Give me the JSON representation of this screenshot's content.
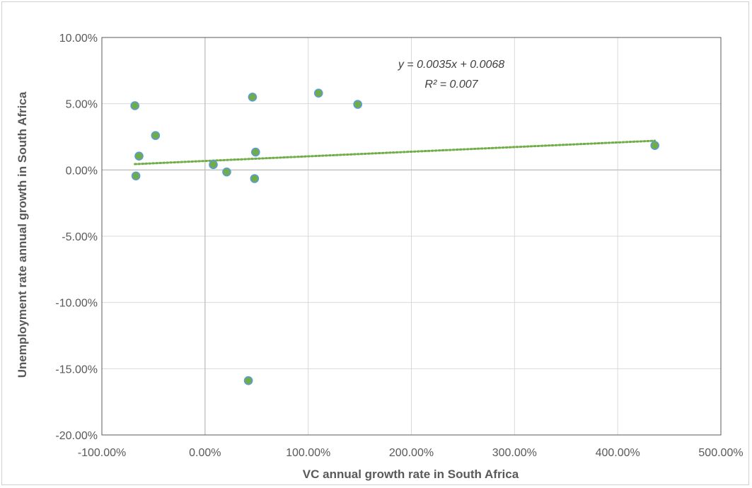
{
  "chart_data": {
    "type": "scatter",
    "xlabel": "VC annual growth rate in South Africa",
    "ylabel": "Unemployment rate annual growth in South Africa",
    "xlim": [
      -100,
      500
    ],
    "ylim": [
      -20,
      10
    ],
    "x_ticks": [
      -100,
      0,
      100,
      200,
      300,
      400,
      500
    ],
    "y_ticks": [
      -20,
      -15,
      -10,
      -5,
      0,
      5,
      10
    ],
    "x_tick_labels": [
      "-100.00%",
      "0.00%",
      "100.00%",
      "200.00%",
      "300.00%",
      "400.00%",
      "500.00%"
    ],
    "y_tick_labels": [
      "-20.00%",
      "-15.00%",
      "-10.00%",
      "-5.00%",
      "0.00%",
      "5.00%",
      "10.00%"
    ],
    "grid": true,
    "points": [
      {
        "x": -68,
        "y": 4.85
      },
      {
        "x": -48,
        "y": 2.6
      },
      {
        "x": -64,
        "y": 1.05
      },
      {
        "x": -67,
        "y": -0.45
      },
      {
        "x": 8,
        "y": 0.4
      },
      {
        "x": 21,
        "y": -0.15
      },
      {
        "x": 46,
        "y": 5.5
      },
      {
        "x": 49,
        "y": 1.35
      },
      {
        "x": 48,
        "y": -0.65
      },
      {
        "x": 42,
        "y": -15.9
      },
      {
        "x": 110,
        "y": 5.8
      },
      {
        "x": 148,
        "y": 4.95
      },
      {
        "x": 436,
        "y": 1.85
      }
    ],
    "trendline": {
      "type": "linear",
      "slope_per_100": 0.35,
      "intercept": 0.68,
      "x_range": [
        -68,
        436
      ],
      "equation": "y = 0.0035x + 0.0068",
      "r2_label": "R² = 0.007"
    },
    "colors": {
      "marker_fill": "#70ad47",
      "marker_edge": "#5b9bd5",
      "trendline": "#70ad47",
      "gridline": "#d9d9d9",
      "axis": "#bfbfbf"
    }
  }
}
